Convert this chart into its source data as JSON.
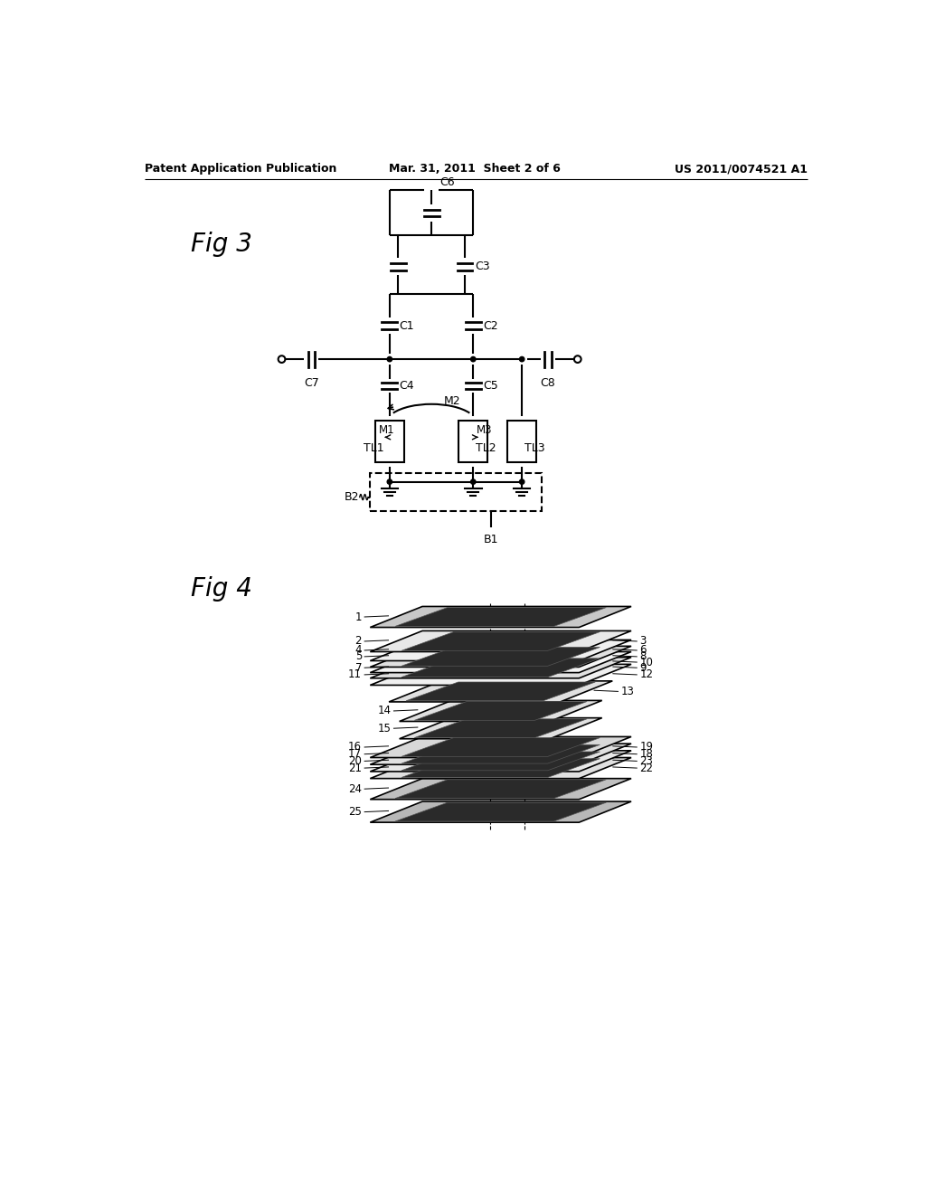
{
  "bg_color": "#ffffff",
  "header_left": "Patent Application Publication",
  "header_center": "Mar. 31, 2011  Sheet 2 of 6",
  "header_right": "US 2011/0074521 A1",
  "fig3_label": "Fig 3",
  "fig4_label": "Fig 4"
}
